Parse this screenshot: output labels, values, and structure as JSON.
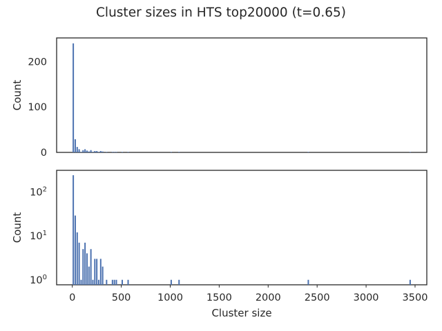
{
  "chart_data": {
    "type": "bar",
    "suptitle": "Cluster sizes in HTS top20000 (t=0.65)",
    "bar_color": "#4c72b0",
    "xlabel": "Cluster size",
    "xlim": [
      -160,
      3620
    ],
    "xticks": [
      0,
      500,
      1000,
      1500,
      2000,
      2500,
      3000,
      3500
    ],
    "bins": [
      {
        "x": 10,
        "count": 240
      },
      {
        "x": 30,
        "count": 29
      },
      {
        "x": 50,
        "count": 12
      },
      {
        "x": 70,
        "count": 7
      },
      {
        "x": 90,
        "count": 1
      },
      {
        "x": 110,
        "count": 5
      },
      {
        "x": 130,
        "count": 7
      },
      {
        "x": 150,
        "count": 4
      },
      {
        "x": 170,
        "count": 2
      },
      {
        "x": 190,
        "count": 5
      },
      {
        "x": 210,
        "count": 1
      },
      {
        "x": 230,
        "count": 3
      },
      {
        "x": 250,
        "count": 3
      },
      {
        "x": 270,
        "count": 1
      },
      {
        "x": 290,
        "count": 3
      },
      {
        "x": 310,
        "count": 2
      },
      {
        "x": 350,
        "count": 1
      },
      {
        "x": 410,
        "count": 1
      },
      {
        "x": 430,
        "count": 1
      },
      {
        "x": 450,
        "count": 1
      },
      {
        "x": 510,
        "count": 1
      },
      {
        "x": 570,
        "count": 1
      },
      {
        "x": 1010,
        "count": 1
      },
      {
        "x": 1090,
        "count": 1
      },
      {
        "x": 2410,
        "count": 1
      },
      {
        "x": 3450,
        "count": 1
      }
    ],
    "panels": [
      {
        "scale": "linear",
        "ylabel": "Count",
        "ylim": [
          0,
          252
        ],
        "yticks": [
          {
            "value": 0,
            "label": "0"
          },
          {
            "value": 100,
            "label": "100"
          },
          {
            "value": 200,
            "label": "200"
          }
        ],
        "show_xticks": false
      },
      {
        "scale": "log",
        "ylabel": "Count",
        "ylim": [
          0.77,
          310
        ],
        "yticks": [
          {
            "value": 1,
            "label": "10",
            "exp": "0"
          },
          {
            "value": 10,
            "label": "10",
            "exp": "1"
          },
          {
            "value": 100,
            "label": "10",
            "exp": "2"
          }
        ],
        "show_xticks": true
      }
    ]
  }
}
